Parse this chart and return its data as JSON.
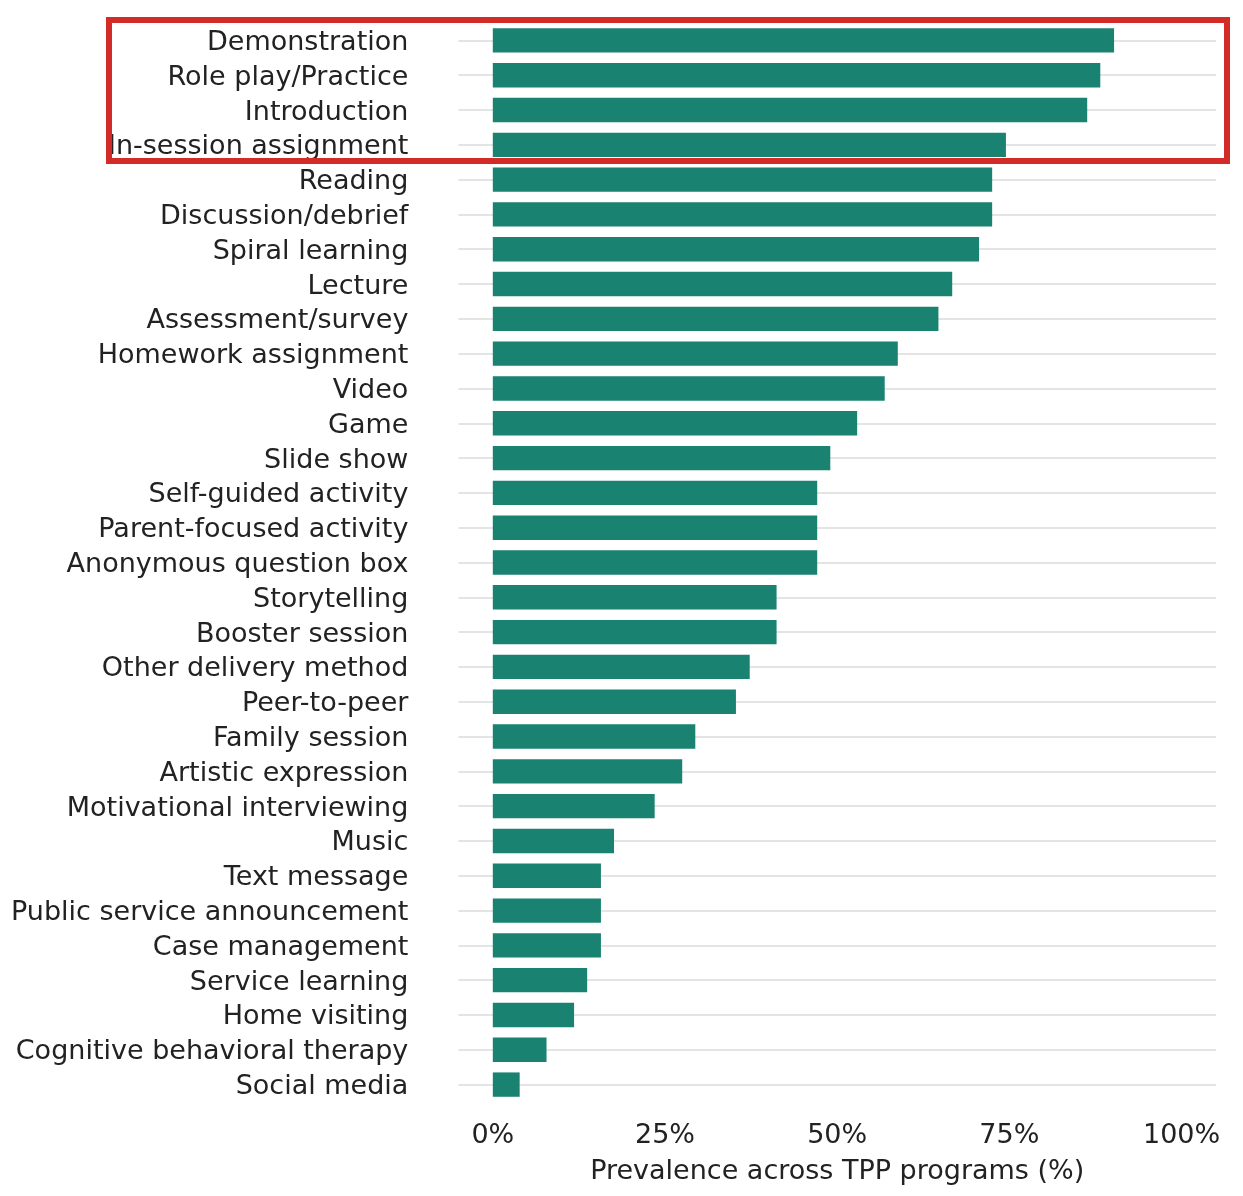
{
  "chart_data": {
    "type": "bar",
    "orientation": "horizontal",
    "xlabel": "Prevalence across TPP programs (%)",
    "categories": [
      "Demonstration",
      "Role play/Practice",
      "Introduction",
      "In-session assignment",
      "Reading",
      "Discussion/debrief",
      "Spiral learning",
      "Lecture",
      "Assessment/survey",
      "Homework assignment",
      "Video",
      "Game",
      "Slide show",
      "Self-guided activity",
      "Parent-focused activity",
      "Anonymous question box",
      "Storytelling",
      "Booster session",
      "Other delivery method",
      "Peer-to-peer",
      "Family session",
      "Artistic expression",
      "Motivational interviewing",
      "Music",
      "Text message",
      "Public service announcement",
      "Case management",
      "Service learning",
      "Home visiting",
      "Cognitive behavioral therapy",
      "Social media"
    ],
    "values": [
      90.2,
      88.2,
      86.3,
      74.5,
      72.5,
      72.5,
      70.6,
      66.7,
      64.7,
      58.8,
      56.9,
      52.9,
      49.0,
      47.1,
      47.1,
      47.1,
      41.2,
      41.2,
      37.3,
      35.3,
      29.4,
      27.5,
      23.5,
      17.6,
      15.7,
      15.7,
      15.7,
      13.7,
      11.8,
      7.8,
      3.9
    ],
    "color": "#1a8270",
    "xlim": [
      -5,
      105
    ],
    "xticks": [
      {
        "value": 0,
        "label": "0%"
      },
      {
        "value": 25,
        "label": "25%"
      },
      {
        "value": 50,
        "label": "50%"
      },
      {
        "value": 75,
        "label": "75%"
      },
      {
        "value": 100,
        "label": "100%"
      }
    ],
    "grid": "y"
  }
}
